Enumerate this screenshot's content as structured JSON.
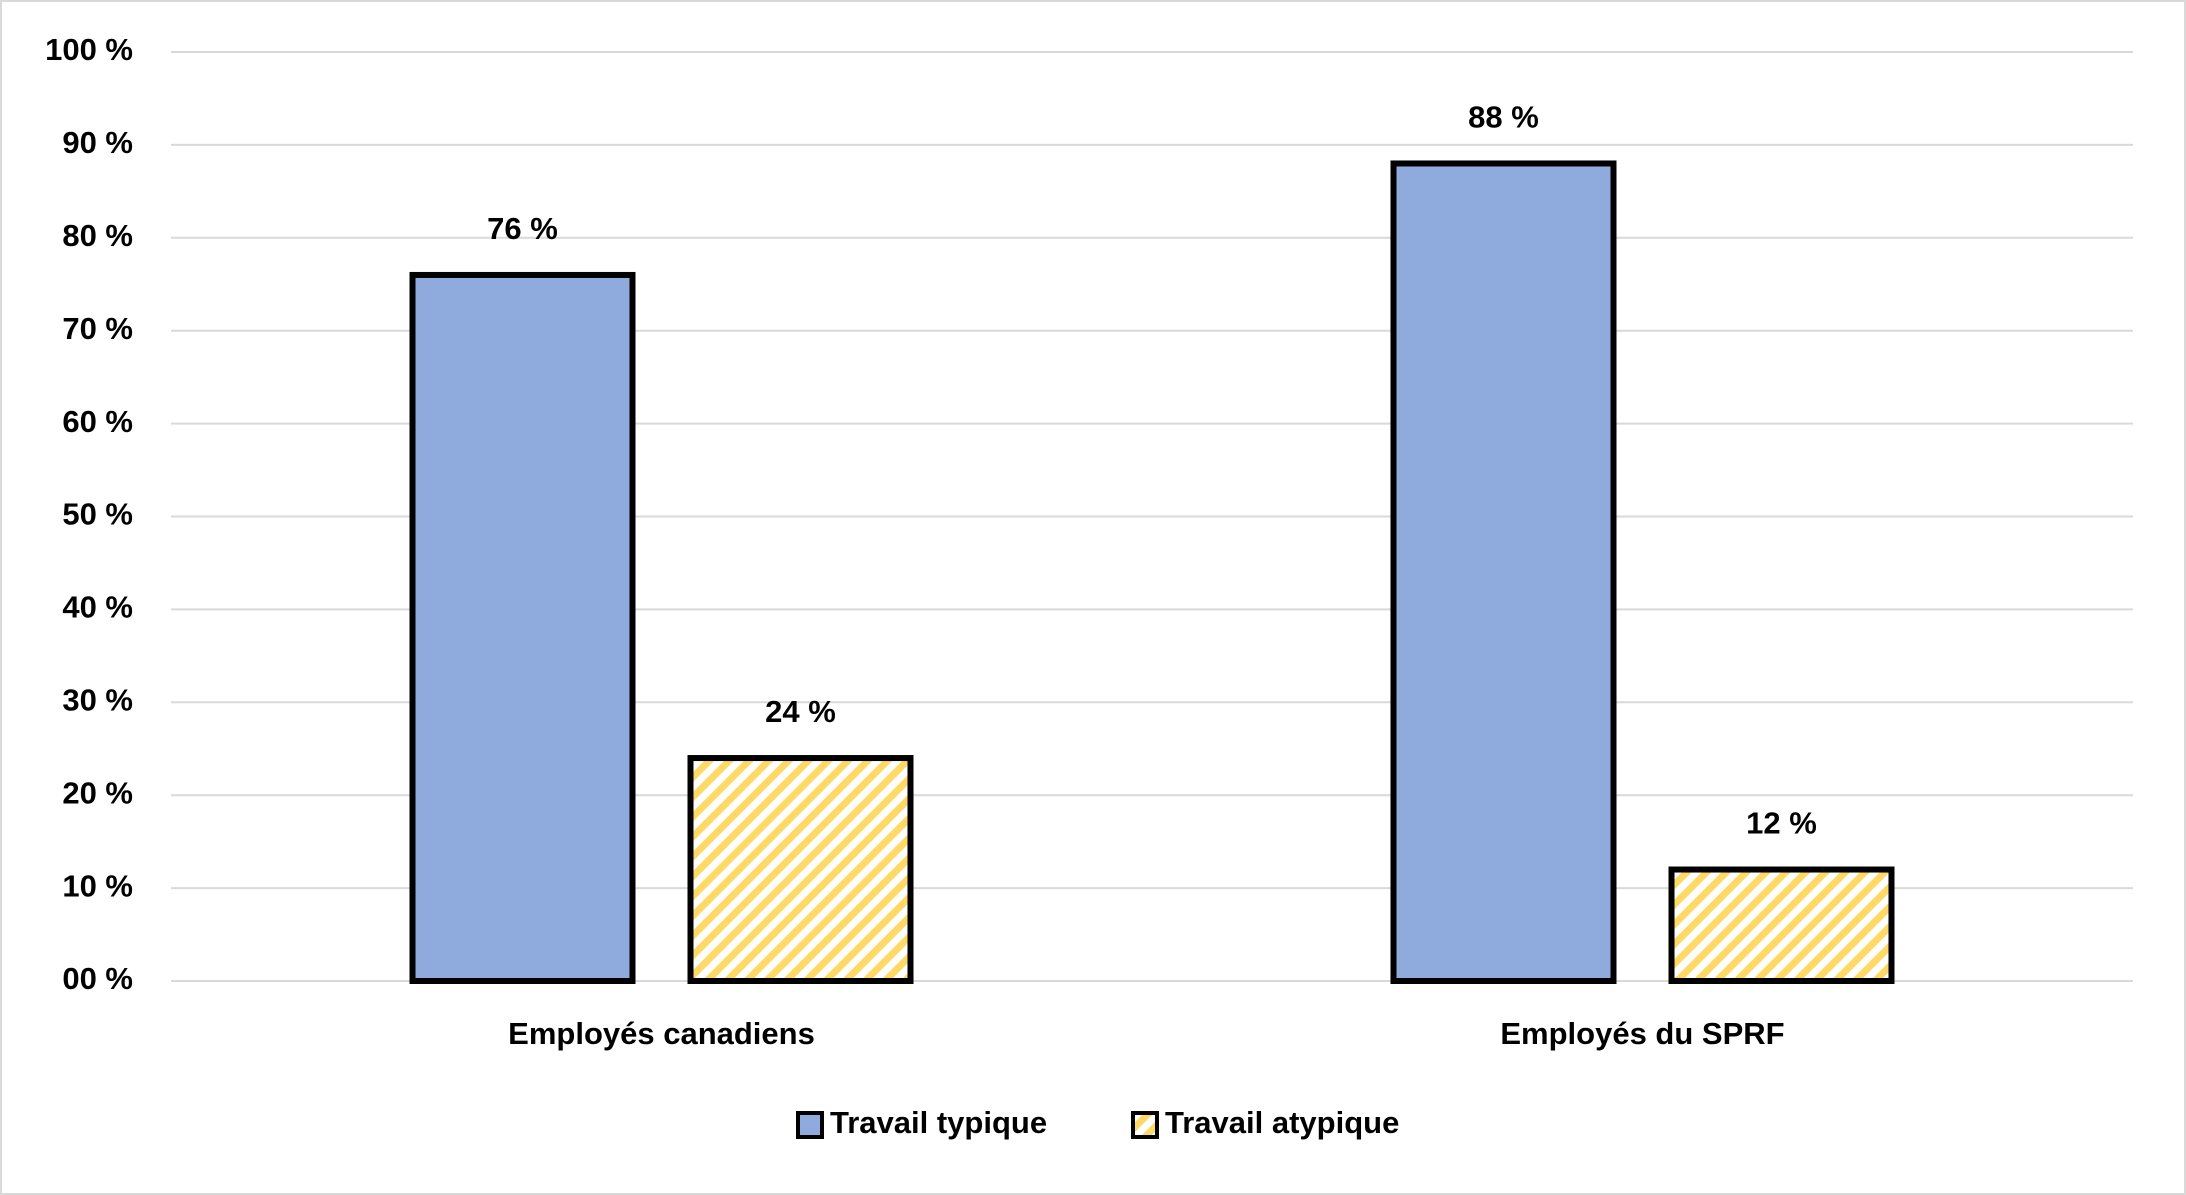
{
  "chart_data": {
    "type": "bar",
    "categories": [
      "Employés canadiens",
      "Employés du SPRF"
    ],
    "series": [
      {
        "name": "Travail typique",
        "color": "#8faadc",
        "values": [
          76,
          88
        ],
        "value_labels": [
          "76 %",
          "88 %"
        ]
      },
      {
        "name": "Travail atypique",
        "color": "#ffd966",
        "pattern": "hatch",
        "values": [
          24,
          12
        ],
        "value_labels": [
          "24 %",
          "12 %"
        ]
      }
    ],
    "ylim": [
      0,
      100
    ],
    "yticks": [
      {
        "value": 0,
        "label": "00 %"
      },
      {
        "value": 10,
        "label": "10 %"
      },
      {
        "value": 20,
        "label": "20 %"
      },
      {
        "value": 30,
        "label": "30 %"
      },
      {
        "value": 40,
        "label": "40 %"
      },
      {
        "value": 50,
        "label": "50 %"
      },
      {
        "value": 60,
        "label": "60 %"
      },
      {
        "value": 70,
        "label": "70 %"
      },
      {
        "value": 80,
        "label": "80 %"
      },
      {
        "value": 90,
        "label": "90 %"
      },
      {
        "value": 100,
        "label": "100 %"
      }
    ],
    "grid": true,
    "legend": "bottom"
  }
}
